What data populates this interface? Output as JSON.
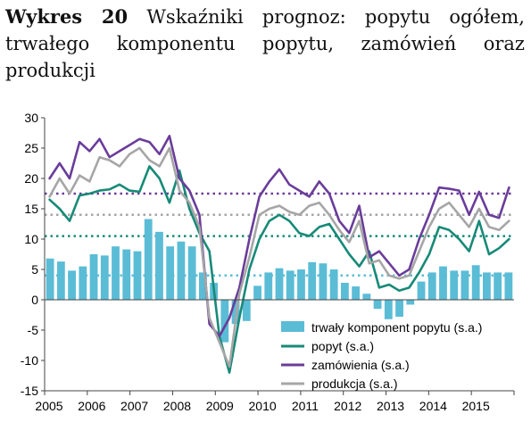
{
  "caption": {
    "label": "Wykres 20",
    "text": "Wskaźniki prognoz: popytu ogółem, trwałego komponentu popytu, zamówień oraz produkcji"
  },
  "chart_data": {
    "type": "bar+line",
    "ylim": [
      -15,
      30
    ],
    "yticks": [
      -15,
      -10,
      -5,
      0,
      5,
      10,
      15,
      20,
      25,
      30
    ],
    "x_start": 2005,
    "x_end": 2016,
    "xtick_labels": [
      "2005",
      "2006",
      "2007",
      "2008",
      "2009",
      "2010",
      "2011",
      "2012",
      "2013",
      "2014",
      "2015"
    ],
    "grid": false,
    "legend_position": "bottom-right",
    "colors": {
      "bars": "#5bbcd6",
      "popyt": "#178a78",
      "zamowienia": "#6a3d9a",
      "produkcja": "#a6a6a6"
    },
    "series": [
      {
        "name": "trwały komponent popytu (s.a.)",
        "type": "bar",
        "values": [
          6.8,
          6.3,
          4.8,
          5.5,
          7.5,
          7.3,
          8.8,
          8.3,
          8.0,
          13.3,
          11.2,
          8.8,
          9.6,
          8.8,
          4.5,
          2.8,
          -7.0,
          -4.0,
          -3.5,
          2.3,
          4.5,
          5.2,
          4.8,
          5.0,
          6.2,
          6.0,
          5.0,
          2.8,
          2.2,
          1.0,
          -1.5,
          -3.2,
          -2.8,
          -0.8,
          3.0,
          4.5,
          5.5,
          4.8,
          4.8,
          5.7,
          4.5,
          4.5,
          4.5
        ]
      },
      {
        "name": "popyt (s.a.)",
        "type": "line",
        "values": [
          16.5,
          15.0,
          13.0,
          17.2,
          17.5,
          18.0,
          18.2,
          19.0,
          18.0,
          17.8,
          22.0,
          20.0,
          16.0,
          21.3,
          15.0,
          11.0,
          8.0,
          -6.0,
          -12.0,
          -3.0,
          5.0,
          10.0,
          13.0,
          14.0,
          13.0,
          11.0,
          10.5,
          12.0,
          12.5,
          10.0,
          7.5,
          5.5,
          8.0,
          2.0,
          2.5,
          1.5,
          2.0,
          4.5,
          7.5,
          12.0,
          11.5,
          10.0,
          8.0,
          13.0,
          7.5,
          8.5,
          10.0
        ]
      },
      {
        "name": "zamówienia (s.a.)",
        "type": "line",
        "values": [
          20.0,
          22.5,
          20.0,
          26.0,
          24.5,
          26.5,
          23.5,
          24.5,
          25.5,
          26.5,
          26.0,
          24.0,
          27.0,
          20.0,
          18.0,
          14.0,
          -4.0,
          -6.0,
          -3.0,
          2.0,
          10.0,
          17.0,
          19.5,
          21.5,
          19.0,
          18.0,
          17.0,
          19.5,
          17.5,
          13.0,
          11.0,
          15.5,
          7.0,
          8.0,
          6.0,
          4.0,
          5.0,
          10.0,
          14.0,
          18.5,
          18.3,
          18.0,
          14.0,
          17.8,
          14.0,
          13.5,
          18.5
        ]
      },
      {
        "name": "produkcja (s.a.)",
        "type": "line",
        "values": [
          17.0,
          20.0,
          17.5,
          20.5,
          19.5,
          23.5,
          23.0,
          22.0,
          24.0,
          25.0,
          23.0,
          22.0,
          25.0,
          18.0,
          16.0,
          12.0,
          -3.0,
          -7.0,
          -11.0,
          1.0,
          7.0,
          14.0,
          15.0,
          15.5,
          14.5,
          14.0,
          15.5,
          16.0,
          14.0,
          11.5,
          9.5,
          13.0,
          6.0,
          6.5,
          4.0,
          3.5,
          4.0,
          8.0,
          12.0,
          15.0,
          16.0,
          14.0,
          12.0,
          15.0,
          12.0,
          11.5,
          13.0
        ]
      }
    ],
    "reference_lines": [
      {
        "series": "zamówienia (s.a.)",
        "value": 17.5
      },
      {
        "series": "produkcja (s.a.)",
        "value": 14.0
      },
      {
        "series": "popyt (s.a.)",
        "value": 10.5
      },
      {
        "series": "trwały komponent popytu (s.a.)",
        "value": 4.0
      }
    ]
  }
}
